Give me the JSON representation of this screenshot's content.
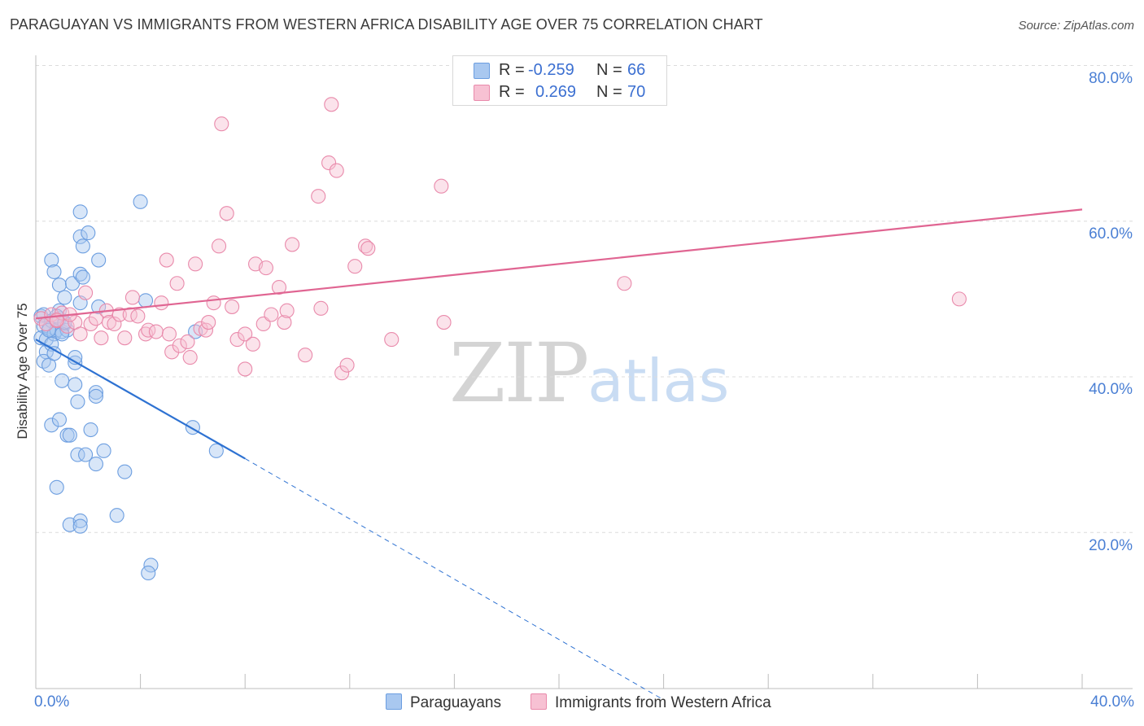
{
  "title": "PARAGUAYAN VS IMMIGRANTS FROM WESTERN AFRICA DISABILITY AGE OVER 75 CORRELATION CHART",
  "source": "Source: ZipAtlas.com",
  "watermark": {
    "part1": "ZIP",
    "part2": "atlas"
  },
  "legend": {
    "rows": [
      {
        "r_label": "R =",
        "r_value": "-0.259",
        "n_label": "N =",
        "n_value": "66",
        "color": "#a9c8f0",
        "border": "#6c9ee0"
      },
      {
        "r_label": "R =",
        "r_value": "0.269",
        "n_label": "N =",
        "n_value": "70",
        "color": "#f7c1d3",
        "border": "#e98aab"
      }
    ]
  },
  "bottom_legend": [
    {
      "label": "Paraguayans",
      "color": "#a9c8f0",
      "border": "#6c9ee0"
    },
    {
      "label": "Immigrants from Western Africa",
      "color": "#f7c1d3",
      "border": "#e98aab"
    }
  ],
  "axes": {
    "y_label": "Disability Age Over 75",
    "y_ticks": [
      "80.0%",
      "60.0%",
      "40.0%",
      "20.0%"
    ],
    "x_tick_left": "0.0%",
    "x_tick_right": "40.0%"
  },
  "chart_data": {
    "type": "scatter",
    "title": "PARAGUAYAN VS IMMIGRANTS FROM WESTERN AFRICA DISABILITY AGE OVER 75 CORRELATION CHART",
    "xlabel": "",
    "ylabel": "Disability Age Over 75",
    "xlim": [
      0,
      40
    ],
    "ylim": [
      0,
      82
    ],
    "y_ticks": [
      20,
      40,
      60,
      80
    ],
    "grid": true,
    "series": [
      {
        "name": "Paraguayans",
        "color": "#6c9ee0",
        "fill": "rgba(169,200,240,0.45)",
        "r": -0.259,
        "n": 66,
        "trend": {
          "x0": 0,
          "y0": 44.8,
          "x1": 8.0,
          "y1": 29.5,
          "dash_to_x": 24.0,
          "dash_to_y": -1.5
        },
        "points": [
          [
            0.2,
            47.8
          ],
          [
            0.3,
            46.5
          ],
          [
            0.2,
            45.0
          ],
          [
            0.4,
            44.8
          ],
          [
            0.5,
            46.2
          ],
          [
            0.3,
            48.0
          ],
          [
            0.6,
            47.2
          ],
          [
            0.4,
            43.2
          ],
          [
            0.3,
            42.0
          ],
          [
            0.5,
            41.5
          ],
          [
            0.7,
            45.5
          ],
          [
            0.8,
            46.0
          ],
          [
            0.6,
            44.2
          ],
          [
            0.9,
            47.5
          ],
          [
            1.0,
            45.8
          ],
          [
            1.1,
            46.8
          ],
          [
            0.7,
            43.0
          ],
          [
            0.9,
            48.5
          ],
          [
            1.2,
            46.0
          ],
          [
            1.0,
            45.5
          ],
          [
            0.6,
            55.0
          ],
          [
            0.7,
            53.5
          ],
          [
            0.9,
            51.8
          ],
          [
            1.1,
            50.2
          ],
          [
            1.4,
            52.0
          ],
          [
            1.7,
            58.0
          ],
          [
            1.8,
            56.8
          ],
          [
            2.0,
            58.5
          ],
          [
            1.7,
            53.2
          ],
          [
            1.8,
            52.8
          ],
          [
            1.7,
            49.5
          ],
          [
            2.4,
            55.0
          ],
          [
            2.4,
            49.0
          ],
          [
            1.7,
            61.2
          ],
          [
            4.0,
            62.5
          ],
          [
            4.2,
            49.8
          ],
          [
            6.1,
            45.8
          ],
          [
            1.5,
            41.8
          ],
          [
            1.5,
            42.5
          ],
          [
            1.0,
            39.5
          ],
          [
            1.5,
            39.0
          ],
          [
            1.6,
            36.8
          ],
          [
            0.6,
            33.8
          ],
          [
            0.9,
            34.5
          ],
          [
            1.2,
            32.5
          ],
          [
            1.3,
            32.5
          ],
          [
            2.1,
            33.2
          ],
          [
            2.3,
            38.0
          ],
          [
            2.3,
            37.5
          ],
          [
            1.6,
            30.0
          ],
          [
            1.9,
            30.0
          ],
          [
            2.6,
            30.5
          ],
          [
            2.3,
            28.8
          ],
          [
            3.4,
            27.8
          ],
          [
            0.8,
            25.8
          ],
          [
            1.3,
            21.0
          ],
          [
            1.7,
            21.5
          ],
          [
            1.7,
            20.8
          ],
          [
            3.1,
            22.2
          ],
          [
            4.4,
            15.8
          ],
          [
            4.3,
            14.8
          ],
          [
            6.0,
            33.5
          ],
          [
            6.9,
            30.5
          ],
          [
            0.5,
            46.0
          ],
          [
            0.8,
            47.8
          ],
          [
            1.1,
            47.0
          ]
        ]
      },
      {
        "name": "Immigrants from Western Africa",
        "color": "#e98aab",
        "fill": "rgba(247,193,211,0.45)",
        "r": 0.269,
        "n": 70,
        "trend": {
          "x0": 0,
          "y0": 47.5,
          "x1": 40.0,
          "y1": 61.5
        },
        "points": [
          [
            0.2,
            47.5
          ],
          [
            0.4,
            46.8
          ],
          [
            0.6,
            48.0
          ],
          [
            0.8,
            47.2
          ],
          [
            1.0,
            48.2
          ],
          [
            1.2,
            46.5
          ],
          [
            1.5,
            47.0
          ],
          [
            1.7,
            45.5
          ],
          [
            1.9,
            50.8
          ],
          [
            2.1,
            46.8
          ],
          [
            2.3,
            47.5
          ],
          [
            2.5,
            45.0
          ],
          [
            2.7,
            48.5
          ],
          [
            2.8,
            47.0
          ],
          [
            3.0,
            46.8
          ],
          [
            3.2,
            48.0
          ],
          [
            3.4,
            45.0
          ],
          [
            3.6,
            48.0
          ],
          [
            3.7,
            50.2
          ],
          [
            3.9,
            47.8
          ],
          [
            4.2,
            45.5
          ],
          [
            4.3,
            46.0
          ],
          [
            4.6,
            45.8
          ],
          [
            4.8,
            49.5
          ],
          [
            5.0,
            55.0
          ],
          [
            5.1,
            45.5
          ],
          [
            5.2,
            43.2
          ],
          [
            5.4,
            52.0
          ],
          [
            5.5,
            44.0
          ],
          [
            5.8,
            44.5
          ],
          [
            5.9,
            42.5
          ],
          [
            6.1,
            54.5
          ],
          [
            6.3,
            46.2
          ],
          [
            6.5,
            46.0
          ],
          [
            6.6,
            47.0
          ],
          [
            6.8,
            49.5
          ],
          [
            7.0,
            56.8
          ],
          [
            7.1,
            72.5
          ],
          [
            7.3,
            61.0
          ],
          [
            7.5,
            49.0
          ],
          [
            7.7,
            44.8
          ],
          [
            8.0,
            45.5
          ],
          [
            8.0,
            41.0
          ],
          [
            8.3,
            44.2
          ],
          [
            8.4,
            54.5
          ],
          [
            8.7,
            46.8
          ],
          [
            8.8,
            54.0
          ],
          [
            9.0,
            48.0
          ],
          [
            9.3,
            51.5
          ],
          [
            9.5,
            47.0
          ],
          [
            9.6,
            48.5
          ],
          [
            9.8,
            57.0
          ],
          [
            10.3,
            42.8
          ],
          [
            10.9,
            48.8
          ],
          [
            10.8,
            63.2
          ],
          [
            11.2,
            67.5
          ],
          [
            11.3,
            75.0
          ],
          [
            11.5,
            66.5
          ],
          [
            11.7,
            40.5
          ],
          [
            11.9,
            41.5
          ],
          [
            12.2,
            54.2
          ],
          [
            12.6,
            56.8
          ],
          [
            12.7,
            56.5
          ],
          [
            13.6,
            44.8
          ],
          [
            15.6,
            47.0
          ],
          [
            15.5,
            64.5
          ],
          [
            22.5,
            52.0
          ],
          [
            35.3,
            50.0
          ],
          [
            0.8,
            47.3
          ],
          [
            1.3,
            48.0
          ]
        ]
      }
    ]
  }
}
